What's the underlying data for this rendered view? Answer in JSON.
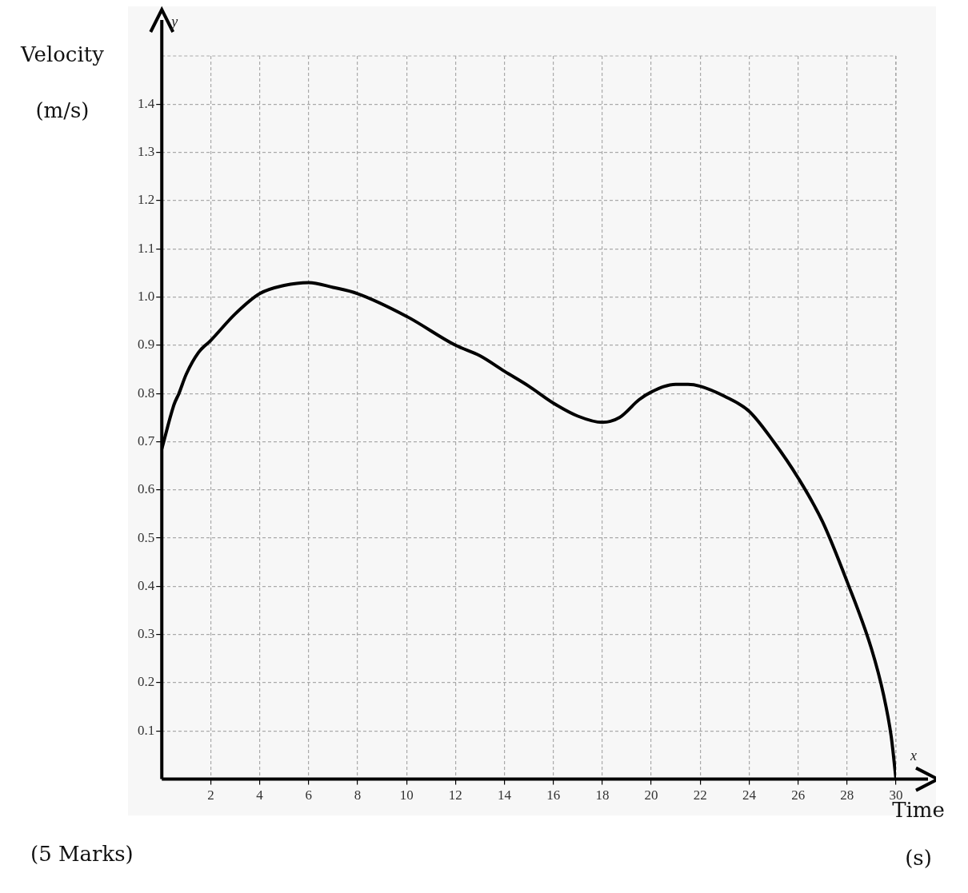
{
  "chart_data": {
    "type": "line",
    "xlabel": "Time (s)",
    "ylabel": "Velocity (m/s)",
    "annotations": [
      "y",
      "x",
      "(5 Marks)"
    ],
    "x": [
      0,
      0.5,
      0.7,
      1,
      1.5,
      2,
      3,
      4,
      5,
      6,
      7,
      8,
      10,
      12,
      13,
      14,
      15,
      16,
      17,
      18,
      18.7,
      19.5,
      20,
      21,
      21.5,
      22,
      23,
      24,
      25,
      26,
      27,
      28,
      29,
      29.5,
      29.8,
      30
    ],
    "series": [
      {
        "color": "#000000",
        "values": [
          0.685,
          0.777,
          0.8,
          0.84,
          0.885,
          0.91,
          0.965,
          1.007,
          1.024,
          1.03,
          1.02,
          1.007,
          0.96,
          0.9,
          0.878,
          0.846,
          0.815,
          0.78,
          0.753,
          0.74,
          0.75,
          0.787,
          0.803,
          0.819,
          0.819,
          0.815,
          0.794,
          0.763,
          0.7,
          0.625,
          0.534,
          0.41,
          0.27,
          0.173,
          0.09,
          0
        ]
      }
    ],
    "xlim": [
      0,
      30
    ],
    "ylim": [
      0,
      1.5
    ],
    "xticks": [
      2,
      4,
      6,
      8,
      10,
      12,
      14,
      16,
      18,
      20,
      22,
      24,
      26,
      28,
      30
    ],
    "yticks": [
      0.1,
      0.2,
      0.3,
      0.4,
      0.5,
      0.6,
      0.7,
      0.8,
      0.9,
      {
        "value": 1,
        "label": "1.0"
      },
      1.1,
      1.2,
      1.3,
      1.4
    ],
    "grid": true,
    "marker": "none",
    "line_style": "solid",
    "legend": false
  }
}
